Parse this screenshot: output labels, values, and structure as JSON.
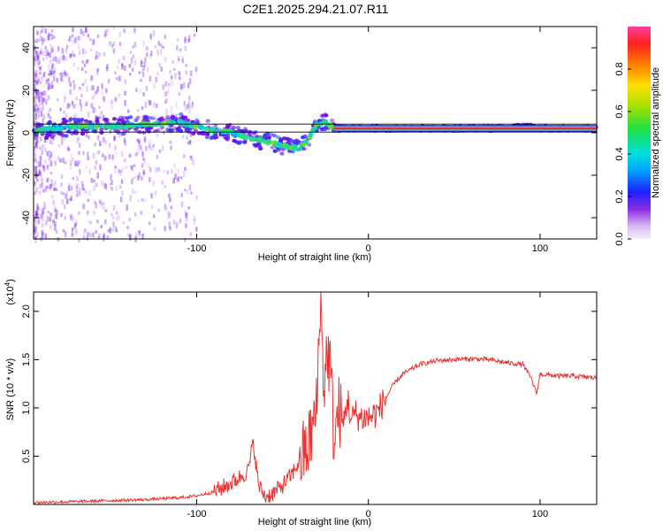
{
  "title": "C2E1.2025.294.21.07.R11",
  "colors": {
    "snr_line": "#ef3030",
    "ridge": "#e0303a",
    "scatter": "#7a1ef0",
    "axis": "#000000"
  },
  "colorbar": {
    "label": "Normalized spectral amplitude",
    "ticks": [
      {
        "v": 0.0,
        "label": "0.0"
      },
      {
        "v": 0.2,
        "label": "0.2"
      },
      {
        "v": 0.4,
        "label": "0.4"
      },
      {
        "v": 0.6,
        "label": "0.6"
      },
      {
        "v": 0.8,
        "label": "0.8"
      }
    ],
    "range": [
      0,
      1
    ]
  },
  "chart_data": [
    {
      "type": "heatmap",
      "title": "C2E1.2025.294.21.07.R11",
      "xlabel": "Height of straight line (km)",
      "ylabel": "Frequency (Hz)",
      "xlim": [
        -195,
        133
      ],
      "ylim": [
        -50,
        50
      ],
      "xticks": [
        {
          "v": -100,
          "label": "-100"
        },
        {
          "v": 0,
          "label": "0"
        },
        {
          "v": 100,
          "label": "100"
        }
      ],
      "yticks": [
        {
          "v": -40,
          "label": "-40"
        },
        {
          "v": -20,
          "label": "-20"
        },
        {
          "v": 0,
          "label": "0"
        },
        {
          "v": 20,
          "label": "20"
        },
        {
          "v": 40,
          "label": "40"
        }
      ],
      "ridge": {
        "x": [
          -195,
          -170,
          -150,
          -130,
          -110,
          -100,
          -90,
          -80,
          -70,
          -60,
          -50,
          -45,
          -40,
          -35,
          -30,
          -25,
          -20,
          -10,
          0,
          20,
          40,
          60,
          80,
          90,
          100,
          133
        ],
        "y": [
          1,
          3,
          3,
          4,
          5,
          3,
          1,
          0,
          -2,
          -4,
          -6,
          -7,
          -7,
          -3,
          4,
          5,
          2,
          2,
          2,
          2,
          2,
          2,
          2,
          3,
          2,
          2
        ]
      },
      "colorbar_label": "Normalized spectral amplitude"
    },
    {
      "type": "line",
      "xlabel": "Height of straight line (km)",
      "ylabel": "SNR (10 * v/v)",
      "y_multiplier": "(x10",
      "y_multiplier_exp": "4",
      "xlim": [
        -195,
        133
      ],
      "ylim": [
        0,
        22000
      ],
      "xticks": [
        {
          "v": -100,
          "label": "-100"
        },
        {
          "v": 0,
          "label": "0"
        },
        {
          "v": 100,
          "label": "100"
        }
      ],
      "yticks": [
        {
          "v": 5000,
          "label": "0.5"
        },
        {
          "v": 10000,
          "label": "1.0"
        },
        {
          "v": 15000,
          "label": "1.5"
        },
        {
          "v": 20000,
          "label": "2.0"
        }
      ],
      "series": [
        {
          "name": "SNR",
          "x": [
            -195,
            -170,
            -150,
            -130,
            -110,
            -100,
            -90,
            -80,
            -75,
            -70,
            -67,
            -64,
            -60,
            -55,
            -50,
            -45,
            -40,
            -35,
            -30,
            -28,
            -26,
            -24,
            -22,
            -20,
            -17,
            -15,
            -12,
            -10,
            -8,
            -5,
            0,
            5,
            10,
            15,
            20,
            30,
            40,
            50,
            60,
            70,
            80,
            90,
            95,
            98,
            100,
            110,
            120,
            133
          ],
          "y": [
            200,
            300,
            400,
            500,
            700,
            900,
            1300,
            2200,
            2800,
            3500,
            6500,
            2000,
            800,
            1200,
            2000,
            3000,
            4500,
            6000,
            10000,
            22000,
            12000,
            16000,
            14000,
            6500,
            10000,
            8000,
            11000,
            8500,
            9500,
            9000,
            9000,
            9500,
            11000,
            12500,
            13500,
            14500,
            14900,
            15000,
            15100,
            15000,
            14700,
            14500,
            13000,
            11500,
            13500,
            13300,
            13300,
            13100
          ]
        }
      ]
    }
  ]
}
